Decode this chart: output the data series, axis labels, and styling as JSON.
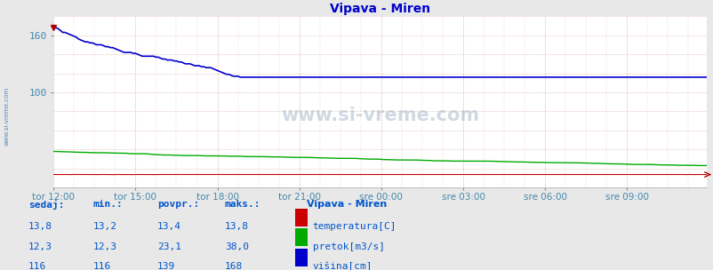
{
  "title": "Vipava - Miren",
  "bg_color": "#e8e8e8",
  "plot_bg_color": "#ffffff",
  "title_color": "#0000cc",
  "tick_label_color": "#4488aa",
  "watermark": "www.si-vreme.com",
  "x_labels": [
    "tor 12:00",
    "tor 15:00",
    "tor 18:00",
    "tor 21:00",
    "sre 00:00",
    "sre 03:00",
    "sre 06:00",
    "sre 09:00"
  ],
  "y_ticks": [
    100,
    160
  ],
  "y_max": 180,
  "y_min": 0,
  "n_points": 288,
  "temp_color": "#cc0000",
  "pretok_color": "#00aa00",
  "visina_color": "#0000cc",
  "legend_title": "Vipava - Miren",
  "legend_items": [
    {
      "label": "temperatura[C]",
      "color": "#cc0000"
    },
    {
      "label": "pretok[m3/s]",
      "color": "#00aa00"
    },
    {
      "label": "višina[cm]",
      "color": "#0000cc"
    }
  ],
  "table_headers": [
    "sedaj:",
    "min.:",
    "povpr.:",
    "maks.:"
  ],
  "table_data": [
    [
      "13,8",
      "13,2",
      "13,4",
      "13,8"
    ],
    [
      "12,3",
      "12,3",
      "23,1",
      "38,0"
    ],
    [
      "116",
      "116",
      "139",
      "168"
    ]
  ],
  "table_color": "#0055cc",
  "sidebar_text": "www.si-vreme.com",
  "sidebar_color": "#2266aa"
}
